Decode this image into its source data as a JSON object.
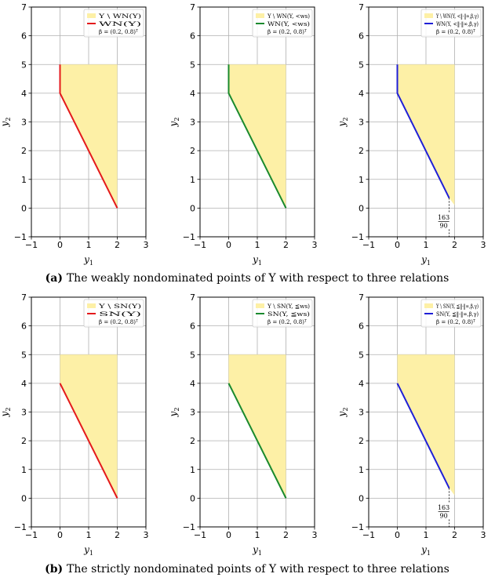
{
  "captions": [
    {
      "letter": "(a)",
      "text": "The weakly nondominated points of Y with respect to three relations"
    },
    {
      "letter": "(b)",
      "text": "The strictly nondominated points of Y with respect to three relations"
    }
  ],
  "colors": {
    "fill": "#fdf0a6",
    "grid": "#b0b0b0",
    "red": "#e41a1c",
    "green": "#1a8a2e",
    "blue": "#1f1fd6"
  },
  "chart_data": [
    {
      "type": "line",
      "row": 0,
      "col": 0,
      "xlabel": "y1",
      "ylabel": "y2",
      "xlim": [
        -1,
        3
      ],
      "ylim": [
        -1,
        7
      ],
      "xticks": [
        "−1",
        "0",
        "1",
        "2",
        "3"
      ],
      "yticks": [
        "−1",
        "0",
        "1",
        "2",
        "3",
        "4",
        "5",
        "6",
        "7"
      ],
      "legend": [
        "Y \\ WN(Y)",
        "WN(Y)",
        "β = (0.2, 0.8)ᵀ"
      ],
      "region": [
        [
          0,
          4
        ],
        [
          0,
          5
        ],
        [
          2,
          5
        ],
        [
          2,
          0
        ]
      ],
      "series": [
        {
          "color": "red",
          "points": [
            [
              0,
              5
            ],
            [
              0,
              4
            ],
            [
              2,
              0
            ]
          ]
        }
      ],
      "annotation": ""
    },
    {
      "type": "line",
      "row": 0,
      "col": 1,
      "xlabel": "y1",
      "ylabel": "y2",
      "xlim": [
        -1,
        3
      ],
      "ylim": [
        -1,
        7
      ],
      "xticks": [
        "−1",
        "0",
        "1",
        "2",
        "3"
      ],
      "yticks": [
        "−1",
        "0",
        "1",
        "2",
        "3",
        "4",
        "5",
        "6",
        "7"
      ],
      "legend": [
        "Y \\ WN(Y, <ws)",
        "WN(Y, <ws)",
        "β = (0.2, 0.8)ᵀ"
      ],
      "region": [
        [
          0,
          4
        ],
        [
          0,
          5
        ],
        [
          2,
          5
        ],
        [
          2,
          0
        ]
      ],
      "series": [
        {
          "color": "green",
          "points": [
            [
              0,
              5
            ],
            [
              0,
              4
            ],
            [
              2,
              0
            ]
          ]
        }
      ],
      "annotation": ""
    },
    {
      "type": "line",
      "row": 0,
      "col": 2,
      "xlabel": "y1",
      "ylabel": "y2",
      "xlim": [
        -1,
        3
      ],
      "ylim": [
        -1,
        7
      ],
      "xticks": [
        "−1",
        "0",
        "1",
        "2",
        "3"
      ],
      "yticks": [
        "−1",
        "0",
        "1",
        "2",
        "3",
        "4",
        "5",
        "6",
        "7"
      ],
      "legend": [
        "Y \\ WN(Y, <‖·‖∞,β,γ)",
        "WN(Y, <‖·‖∞,β,γ)",
        "β = (0.2, 0.8)ᵀ"
      ],
      "region": [
        [
          0,
          4
        ],
        [
          0,
          5
        ],
        [
          2,
          5
        ],
        [
          2,
          0.1
        ],
        [
          1.811,
          0.35
        ]
      ],
      "series": [
        {
          "color": "blue",
          "points": [
            [
              0,
              5
            ],
            [
              0,
              4
            ],
            [
              1.811,
              0.35
            ]
          ]
        }
      ],
      "annotation": {
        "x": 1.811,
        "numerator": "163",
        "denominator": "90"
      }
    },
    {
      "type": "line",
      "row": 1,
      "col": 0,
      "xlabel": "y1",
      "ylabel": "y2",
      "xlim": [
        -1,
        3
      ],
      "ylim": [
        -1,
        7
      ],
      "xticks": [
        "−1",
        "0",
        "1",
        "2",
        "3"
      ],
      "yticks": [
        "−1",
        "0",
        "1",
        "2",
        "3",
        "4",
        "5",
        "6",
        "7"
      ],
      "legend": [
        "Y \\ SN(Y)",
        "SN(Y)",
        "β = (0.2, 0.8)ᵀ"
      ],
      "region": [
        [
          0,
          4
        ],
        [
          0,
          5
        ],
        [
          2,
          5
        ],
        [
          2,
          0
        ]
      ],
      "series": [
        {
          "color": "red",
          "points": [
            [
              0,
              4
            ],
            [
              2,
              0
            ]
          ]
        }
      ],
      "annotation": ""
    },
    {
      "type": "line",
      "row": 1,
      "col": 1,
      "xlabel": "y1",
      "ylabel": "y2",
      "xlim": [
        -1,
        3
      ],
      "ylim": [
        -1,
        7
      ],
      "xticks": [
        "−1",
        "0",
        "1",
        "2",
        "3"
      ],
      "yticks": [
        "−1",
        "0",
        "1",
        "2",
        "3",
        "4",
        "5",
        "6",
        "7"
      ],
      "legend": [
        "Y \\ SN(Y, ≦ws)",
        "SN(Y, ≦ws)",
        "β = (0.2, 0.8)ᵀ"
      ],
      "region": [
        [
          0,
          4
        ],
        [
          0,
          5
        ],
        [
          2,
          5
        ],
        [
          2,
          0
        ]
      ],
      "series": [
        {
          "color": "green",
          "points": [
            [
              0,
              4
            ],
            [
              2,
              0
            ]
          ]
        }
      ],
      "annotation": ""
    },
    {
      "type": "line",
      "row": 1,
      "col": 2,
      "xlabel": "y1",
      "ylabel": "y2",
      "xlim": [
        -1,
        3
      ],
      "ylim": [
        -1,
        7
      ],
      "xticks": [
        "−1",
        "0",
        "1",
        "2",
        "3"
      ],
      "yticks": [
        "−1",
        "0",
        "1",
        "2",
        "3",
        "4",
        "5",
        "6",
        "7"
      ],
      "legend": [
        "Y \\ SN(Y, ≦‖·‖∞,β,γ)",
        "SN(Y, ≦‖·‖∞,β,γ)",
        "β = (0.2, 0.8)ᵀ"
      ],
      "region": [
        [
          0,
          4
        ],
        [
          0,
          5
        ],
        [
          2,
          5
        ],
        [
          2,
          0.1
        ],
        [
          1.811,
          0.35
        ]
      ],
      "series": [
        {
          "color": "blue",
          "points": [
            [
              0,
              4
            ],
            [
              1.811,
              0.35
            ]
          ]
        }
      ],
      "annotation": {
        "x": 1.811,
        "numerator": "163",
        "denominator": "90"
      }
    }
  ]
}
